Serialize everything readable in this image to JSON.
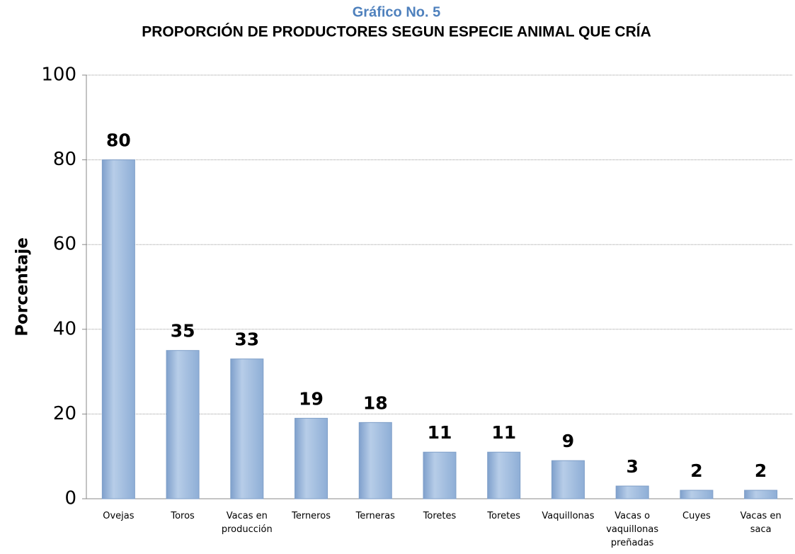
{
  "chart_data": {
    "type": "bar",
    "title": "Gráfico No. 5",
    "subtitle": "PROPORCIÓN DE PRODUCTORES SEGUN ESPECIE ANIMAL QUE CRÍA",
    "y_label": "Porcentaje",
    "categories": [
      "Ovejas",
      "Toros",
      "Vacas en producción",
      "Terneros",
      "Terneras",
      "Toretes",
      "Toretes",
      "Vaquillonas",
      "Vacas o vaquillonas preñadas",
      "Cuyes",
      "Vacas en saca"
    ],
    "values": [
      80,
      35,
      33,
      19,
      18,
      11,
      11,
      9,
      3,
      2,
      2
    ],
    "color": "#95b3d7",
    "ylim": [
      0,
      100
    ],
    "yticks": [
      0,
      20,
      40,
      60,
      80,
      100
    ],
    "grid": true
  }
}
